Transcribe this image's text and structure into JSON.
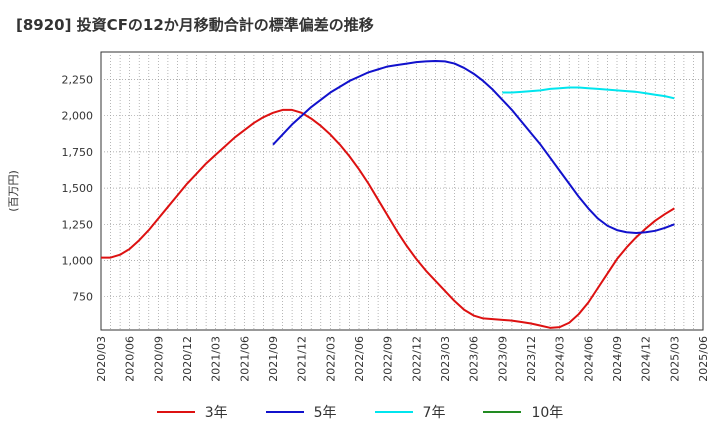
{
  "title": "[8920]  投資CFの12か月移動合計の標準偏差の推移",
  "chart_data": {
    "type": "line",
    "title": "[8920]  投資CFの12か月移動合計の標準偏差の推移",
    "xlabel": "",
    "ylabel": "(百万円)",
    "x_ticks": [
      "2020/03",
      "2020/06",
      "2020/09",
      "2020/12",
      "2021/03",
      "2021/06",
      "2021/09",
      "2021/12",
      "2022/03",
      "2022/06",
      "2022/09",
      "2022/12",
      "2023/03",
      "2023/06",
      "2023/09",
      "2023/12",
      "2024/03",
      "2024/06",
      "2024/09",
      "2024/12",
      "2025/03",
      "2025/06"
    ],
    "y_ticks": [
      750,
      1000,
      1250,
      1500,
      1750,
      2000,
      2250
    ],
    "ylim": [
      520,
      2440
    ],
    "grid": true,
    "legend_position": "bottom",
    "series": [
      {
        "name": "3年",
        "color": "#dd1111",
        "points": [
          [
            "2020/03",
            1020
          ],
          [
            "2020/04",
            1020
          ],
          [
            "2020/05",
            1040
          ],
          [
            "2020/06",
            1080
          ],
          [
            "2020/07",
            1140
          ],
          [
            "2020/08",
            1210
          ],
          [
            "2020/09",
            1290
          ],
          [
            "2020/10",
            1370
          ],
          [
            "2020/11",
            1450
          ],
          [
            "2020/12",
            1530
          ],
          [
            "2021/01",
            1600
          ],
          [
            "2021/02",
            1670
          ],
          [
            "2021/03",
            1730
          ],
          [
            "2021/04",
            1790
          ],
          [
            "2021/05",
            1850
          ],
          [
            "2021/06",
            1900
          ],
          [
            "2021/07",
            1950
          ],
          [
            "2021/08",
            1990
          ],
          [
            "2021/09",
            2020
          ],
          [
            "2021/10",
            2040
          ],
          [
            "2021/11",
            2040
          ],
          [
            "2021/12",
            2020
          ],
          [
            "2022/01",
            1980
          ],
          [
            "2022/02",
            1930
          ],
          [
            "2022/03",
            1870
          ],
          [
            "2022/04",
            1800
          ],
          [
            "2022/05",
            1720
          ],
          [
            "2022/06",
            1630
          ],
          [
            "2022/07",
            1530
          ],
          [
            "2022/08",
            1420
          ],
          [
            "2022/09",
            1310
          ],
          [
            "2022/10",
            1200
          ],
          [
            "2022/11",
            1100
          ],
          [
            "2022/12",
            1010
          ],
          [
            "2023/01",
            930
          ],
          [
            "2023/02",
            860
          ],
          [
            "2023/03",
            790
          ],
          [
            "2023/04",
            720
          ],
          [
            "2023/05",
            660
          ],
          [
            "2023/06",
            620
          ],
          [
            "2023/07",
            600
          ],
          [
            "2023/08",
            595
          ],
          [
            "2023/09",
            590
          ],
          [
            "2023/10",
            585
          ],
          [
            "2023/11",
            575
          ],
          [
            "2023/12",
            565
          ],
          [
            "2024/01",
            550
          ],
          [
            "2024/02",
            535
          ],
          [
            "2024/03",
            540
          ],
          [
            "2024/04",
            570
          ],
          [
            "2024/05",
            630
          ],
          [
            "2024/06",
            710
          ],
          [
            "2024/07",
            810
          ],
          [
            "2024/08",
            910
          ],
          [
            "2024/09",
            1010
          ],
          [
            "2024/10",
            1090
          ],
          [
            "2024/11",
            1160
          ],
          [
            "2024/12",
            1220
          ],
          [
            "2025/01",
            1275
          ],
          [
            "2025/02",
            1320
          ],
          [
            "2025/03",
            1360
          ]
        ]
      },
      {
        "name": "5年",
        "color": "#1111cc",
        "points": [
          [
            "2021/09",
            1800
          ],
          [
            "2021/10",
            1870
          ],
          [
            "2021/11",
            1940
          ],
          [
            "2021/12",
            2000
          ],
          [
            "2022/01",
            2060
          ],
          [
            "2022/02",
            2110
          ],
          [
            "2022/03",
            2160
          ],
          [
            "2022/04",
            2200
          ],
          [
            "2022/05",
            2240
          ],
          [
            "2022/06",
            2270
          ],
          [
            "2022/07",
            2300
          ],
          [
            "2022/08",
            2320
          ],
          [
            "2022/09",
            2340
          ],
          [
            "2022/10",
            2350
          ],
          [
            "2022/11",
            2360
          ],
          [
            "2022/12",
            2370
          ],
          [
            "2023/01",
            2375
          ],
          [
            "2023/02",
            2378
          ],
          [
            "2023/03",
            2375
          ],
          [
            "2023/04",
            2360
          ],
          [
            "2023/05",
            2330
          ],
          [
            "2023/06",
            2290
          ],
          [
            "2023/07",
            2240
          ],
          [
            "2023/08",
            2180
          ],
          [
            "2023/09",
            2110
          ],
          [
            "2023/10",
            2040
          ],
          [
            "2023/11",
            1960
          ],
          [
            "2023/12",
            1880
          ],
          [
            "2024/01",
            1800
          ],
          [
            "2024/02",
            1710
          ],
          [
            "2024/03",
            1620
          ],
          [
            "2024/04",
            1530
          ],
          [
            "2024/05",
            1440
          ],
          [
            "2024/06",
            1360
          ],
          [
            "2024/07",
            1290
          ],
          [
            "2024/08",
            1240
          ],
          [
            "2024/09",
            1210
          ],
          [
            "2024/10",
            1195
          ],
          [
            "2024/11",
            1190
          ],
          [
            "2024/12",
            1195
          ],
          [
            "2025/01",
            1205
          ],
          [
            "2025/02",
            1225
          ],
          [
            "2025/03",
            1250
          ]
        ]
      },
      {
        "name": "7年",
        "color": "#00e5ee",
        "points": [
          [
            "2023/09",
            2160
          ],
          [
            "2023/10",
            2160
          ],
          [
            "2023/11",
            2165
          ],
          [
            "2023/12",
            2170
          ],
          [
            "2024/01",
            2175
          ],
          [
            "2024/02",
            2185
          ],
          [
            "2024/03",
            2190
          ],
          [
            "2024/04",
            2195
          ],
          [
            "2024/05",
            2195
          ],
          [
            "2024/06",
            2190
          ],
          [
            "2024/07",
            2185
          ],
          [
            "2024/08",
            2180
          ],
          [
            "2024/09",
            2175
          ],
          [
            "2024/10",
            2170
          ],
          [
            "2024/11",
            2165
          ],
          [
            "2024/12",
            2155
          ],
          [
            "2025/01",
            2145
          ],
          [
            "2025/02",
            2135
          ],
          [
            "2025/03",
            2120
          ]
        ]
      },
      {
        "name": "10年",
        "color": "#228b22",
        "points": []
      }
    ]
  }
}
